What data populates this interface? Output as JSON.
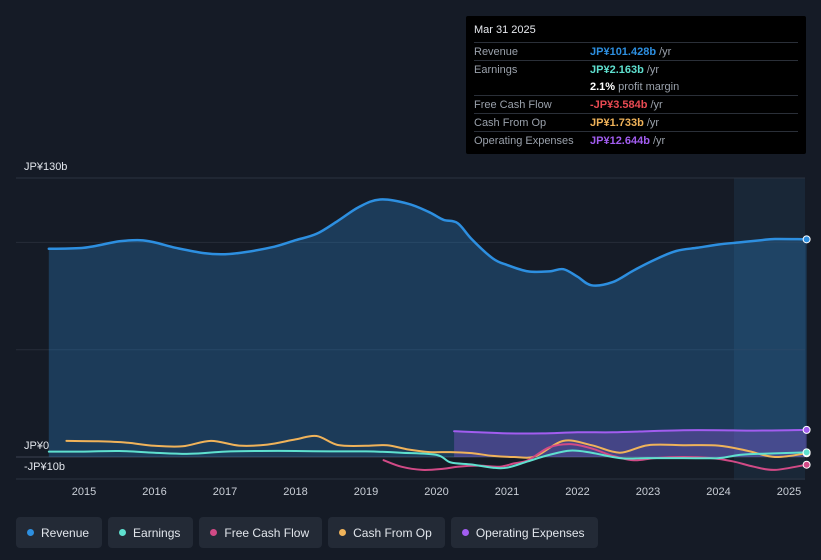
{
  "tooltip": {
    "date": "Mar 31 2025",
    "rows": [
      {
        "label": "Revenue",
        "value": "JP¥101.428b",
        "unit": "/yr",
        "color": "#2d8fe0"
      },
      {
        "label": "Earnings",
        "value": "JP¥2.163b",
        "unit": "/yr",
        "color": "#5fe0cf"
      },
      {
        "label": "",
        "value": "2.1%",
        "unit": "profit margin",
        "color": "#ffffff"
      },
      {
        "label": "Free Cash Flow",
        "value": "-JP¥3.584b",
        "unit": "/yr",
        "color": "#e84a52"
      },
      {
        "label": "Cash From Op",
        "value": "JP¥1.733b",
        "unit": "/yr",
        "color": "#f0b35a"
      },
      {
        "label": "Operating Expenses",
        "value": "JP¥12.644b",
        "unit": "/yr",
        "color": "#a25df0"
      }
    ]
  },
  "legend": [
    {
      "label": "Revenue",
      "color": "#2d8fe0"
    },
    {
      "label": "Earnings",
      "color": "#5fe0cf"
    },
    {
      "label": "Free Cash Flow",
      "color": "#d14a86"
    },
    {
      "label": "Cash From Op",
      "color": "#f0b35a"
    },
    {
      "label": "Operating Expenses",
      "color": "#a25df0"
    }
  ],
  "chart_data": {
    "type": "line",
    "title": "",
    "xlabel": "",
    "ylabel": "",
    "ylim": [
      -10,
      130
    ],
    "y_tick_labels": [
      "JP¥130b",
      "JP¥0",
      "-JP¥10b"
    ],
    "x_tick_labels": [
      "2015",
      "2016",
      "2017",
      "2018",
      "2019",
      "2020",
      "2021",
      "2022",
      "2023",
      "2024",
      "2025"
    ],
    "series": [
      {
        "name": "Revenue",
        "color": "#2d8fe0",
        "area": true,
        "x": [
          2014.5,
          2015.0,
          2015.5,
          2015.8,
          2016.0,
          2016.3,
          2016.7,
          2017.0,
          2017.3,
          2017.7,
          2018.0,
          2018.3,
          2018.6,
          2018.9,
          2019.2,
          2019.6,
          2019.9,
          2020.1,
          2020.3,
          2020.5,
          2020.8,
          2021.0,
          2021.3,
          2021.6,
          2021.8,
          2022.0,
          2022.2,
          2022.5,
          2022.8,
          2023.1,
          2023.4,
          2023.7,
          2024.0,
          2024.3,
          2024.6,
          2024.8,
          2025.25
        ],
        "y": [
          97,
          97.5,
          100.5,
          101,
          100,
          97.5,
          95,
          94.5,
          95.5,
          98,
          101,
          104,
          110,
          116.5,
          120,
          118,
          114,
          110.5,
          109,
          101.5,
          92.5,
          89.5,
          86.5,
          86.5,
          87.5,
          84,
          80,
          81.5,
          87,
          92,
          96,
          97.5,
          99,
          100,
          101,
          101.6,
          101.428
        ]
      },
      {
        "name": "Earnings",
        "color": "#5fe0cf",
        "x": [
          2014.5,
          2015.0,
          2015.5,
          2016.0,
          2016.5,
          2017.0,
          2017.5,
          2018.0,
          2018.5,
          2019.0,
          2019.5,
          2020.0,
          2020.2,
          2020.5,
          2020.8,
          2021.0,
          2021.3,
          2021.6,
          2021.9,
          2022.2,
          2022.6,
          2023.0,
          2023.5,
          2024.0,
          2024.3,
          2024.6,
          2025.25
        ],
        "y": [
          2.5,
          2.5,
          2.8,
          2.0,
          1.5,
          2.5,
          2.8,
          2.8,
          2.6,
          2.6,
          2.0,
          1.0,
          -2.5,
          -3.5,
          -5.0,
          -5.0,
          -2.0,
          1.0,
          3.0,
          2.0,
          -0.5,
          -0.5,
          -0.5,
          -0.5,
          1.0,
          1.5,
          2.163
        ]
      },
      {
        "name": "Free Cash Flow",
        "color": "#d14a86",
        "x": [
          2019.25,
          2019.5,
          2019.8,
          2020.1,
          2020.3,
          2020.6,
          2020.9,
          2021.1,
          2021.3,
          2021.6,
          2021.9,
          2022.2,
          2022.5,
          2022.8,
          2023.1,
          2023.5,
          2023.9,
          2024.2,
          2024.5,
          2024.8,
          2025.25
        ],
        "y": [
          -1.5,
          -4.5,
          -6.0,
          -5.5,
          -4.5,
          -4.0,
          -4.5,
          -3.0,
          -1.5,
          4.5,
          6.0,
          4.0,
          0.5,
          -1.5,
          -0.5,
          0,
          -0.5,
          -2.0,
          -4.5,
          -6.0,
          -3.584
        ]
      },
      {
        "name": "Cash From Op",
        "color": "#f0b35a",
        "x": [
          2014.75,
          2015.2,
          2015.6,
          2016.0,
          2016.4,
          2016.8,
          2017.2,
          2017.6,
          2018.0,
          2018.3,
          2018.6,
          2019.0,
          2019.3,
          2019.6,
          2019.9,
          2020.2,
          2020.5,
          2020.8,
          2021.1,
          2021.4,
          2021.8,
          2022.2,
          2022.6,
          2023.0,
          2023.5,
          2024.0,
          2024.4,
          2024.8,
          2025.25
        ],
        "y": [
          7.5,
          7.3,
          6.7,
          5.2,
          5.0,
          7.5,
          5.3,
          5.8,
          8.2,
          9.8,
          5.6,
          5.2,
          5.5,
          3.5,
          2.3,
          2.3,
          1.8,
          0.5,
          0.0,
          0.3,
          7.5,
          5.5,
          2.0,
          5.5,
          5.5,
          5.3,
          3.0,
          0.0,
          1.733
        ]
      },
      {
        "name": "Operating Expenses",
        "color": "#a25df0",
        "area": true,
        "x": [
          2020.25,
          2020.6,
          2021.0,
          2021.5,
          2022.0,
          2022.5,
          2023.0,
          2023.5,
          2024.0,
          2024.5,
          2025.25
        ],
        "y": [
          12.0,
          11.5,
          11.0,
          11.0,
          11.5,
          11.5,
          12.0,
          12.5,
          12.5,
          12.3,
          12.644
        ]
      }
    ]
  }
}
